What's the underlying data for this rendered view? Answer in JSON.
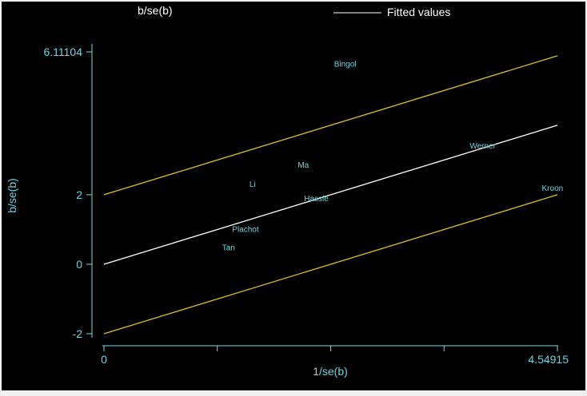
{
  "chart_data": {
    "type": "scatter",
    "title": "",
    "xlabel": "1/se(b)",
    "ylabel": "b/se(b)",
    "xlim": [
      0,
      4.54915
    ],
    "ylim": [
      -2,
      6.11104
    ],
    "x_tick_labels": [
      {
        "value": 0,
        "label": "0"
      },
      {
        "value": 4.54915,
        "label": "4.54915"
      }
    ],
    "x_minor_ticks": [
      1.137,
      2.275,
      3.412
    ],
    "y_tick_labels": [
      {
        "value": -2,
        "label": "-2"
      },
      {
        "value": 0,
        "label": "0"
      },
      {
        "value": 2,
        "label": "2"
      },
      {
        "value": 6.11104,
        "label": "6.11104"
      }
    ],
    "legend": {
      "placement": "top",
      "entries": [
        {
          "label": "b/se(b)",
          "marker": "none",
          "color": "#ffffff"
        },
        {
          "label": "Fitted values",
          "marker": "line",
          "color": "#ffffff"
        }
      ]
    },
    "points": [
      {
        "label": "Bingol",
        "x": 2.42,
        "y": 5.75
      },
      {
        "label": "Werner",
        "x": 3.8,
        "y": 3.4
      },
      {
        "label": "Ma",
        "x": 2.0,
        "y": 2.85
      },
      {
        "label": "Li",
        "x": 1.49,
        "y": 2.3
      },
      {
        "label": "Hassle",
        "x": 2.13,
        "y": 1.88
      },
      {
        "label": "Kroon",
        "x": 4.5,
        "y": 2.18
      },
      {
        "label": "Plachot",
        "x": 1.42,
        "y": 1.0
      },
      {
        "label": "Tan",
        "x": 1.25,
        "y": 0.47
      }
    ],
    "lines": [
      {
        "name": "Fitted values",
        "color": "#ffffff",
        "x": [
          0,
          4.54915
        ],
        "y": [
          0,
          4.0
        ]
      },
      {
        "name": "upper",
        "color": "#e0c020",
        "x": [
          0,
          4.54915
        ],
        "y": [
          2,
          6.0
        ]
      },
      {
        "name": "lower",
        "color": "#e0c020",
        "x": [
          0,
          4.54915
        ],
        "y": [
          -2,
          2.0
        ]
      }
    ],
    "colors": {
      "background": "#000000",
      "axis": "#7fd8e0",
      "label_text": "#6cd4e4",
      "border": "#f0f0f0"
    }
  }
}
